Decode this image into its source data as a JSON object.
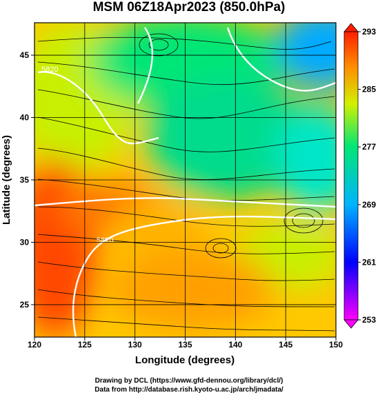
{
  "chart_data": {
    "type": "heatmap",
    "title": "MSM 06Z18Apr2023 (850.0hPa)",
    "xlabel": "Longitude (degrees)",
    "ylabel": "Latitude  (degrees)",
    "xlim": [
      120,
      150
    ],
    "ylim": [
      22.4,
      47.6
    ],
    "xticks": [
      120,
      125,
      130,
      135,
      140,
      145,
      150
    ],
    "yticks": [
      25,
      30,
      35,
      40,
      45
    ],
    "colorbar": {
      "min": 253,
      "max": 293,
      "ticks": [
        253,
        261,
        269,
        277,
        285,
        293
      ],
      "colors": [
        "#ff00ff",
        "#0000ff",
        "#00b4ff",
        "#00e676",
        "#d2f000",
        "#ff8c00",
        "#ff1e00"
      ]
    },
    "contour_labels": [
      "5820",
      "5820"
    ],
    "streamlines": "wind vectors",
    "field_samples": [
      {
        "lon": 122,
        "lat": 28,
        "value": 289
      },
      {
        "lon": 125,
        "lat": 36,
        "value": 285
      },
      {
        "lon": 130,
        "lat": 42,
        "value": 279
      },
      {
        "lon": 138,
        "lat": 28,
        "value": 284
      },
      {
        "lon": 140,
        "lat": 38,
        "value": 276
      },
      {
        "lon": 147,
        "lat": 45,
        "value": 268
      },
      {
        "lon": 147,
        "lat": 32,
        "value": 277
      }
    ]
  },
  "credits": {
    "line1": "Drawing by DCL (https://www.gfd-dennou.org/library/dcl/)",
    "line2": "Data from http://database.rish.kyoto-u.ac.jp/arch/jmadata/"
  }
}
